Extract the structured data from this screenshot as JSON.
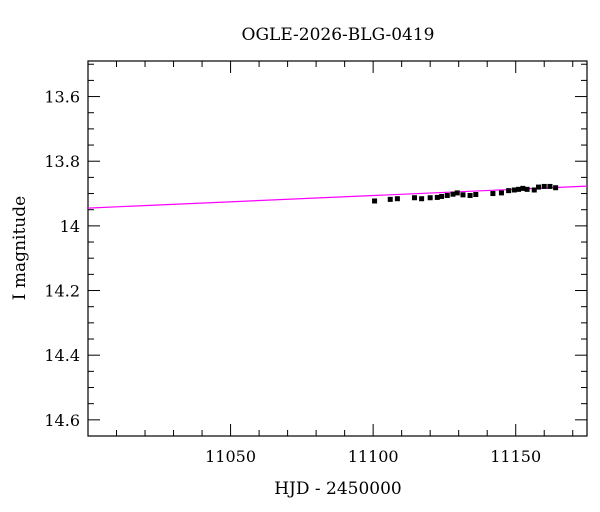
{
  "chart_data": {
    "type": "scatter",
    "title": "OGLE-2026-BLG-0419",
    "xlabel": "HJD - 2450000",
    "ylabel": "I magnitude",
    "xlim": [
      11000,
      11175
    ],
    "ylim": [
      14.65,
      13.49
    ],
    "y_inverted": true,
    "x_major_ticks": [
      11050,
      11100,
      11150
    ],
    "x_tick_labels": [
      "11050",
      "11100",
      "11150"
    ],
    "y_major_ticks": [
      13.6,
      13.8,
      14.0,
      14.2,
      14.4,
      14.6
    ],
    "y_tick_labels": [
      "13.6",
      "13.8",
      "14",
      "14.2",
      "14.4",
      "14.6"
    ],
    "grid": false,
    "series": [
      {
        "marker": "square",
        "color": "#000000",
        "x": [
          11100.5,
          11106.0,
          11108.5,
          11114.5,
          11117.0,
          11120.0,
          11122.5,
          11124.0,
          11126.0,
          11128.0,
          11129.5,
          11131.5,
          11134.0,
          11136.0,
          11142.0,
          11145.0,
          11147.5,
          11149.5,
          11151.0,
          11152.5,
          11154.0,
          11156.5,
          11158.0,
          11160.0,
          11162.0,
          11164.0
        ],
        "y": [
          13.923,
          13.918,
          13.916,
          13.913,
          13.916,
          13.913,
          13.912,
          13.909,
          13.906,
          13.902,
          13.898,
          13.904,
          13.906,
          13.903,
          13.9,
          13.898,
          13.891,
          13.889,
          13.887,
          13.884,
          13.887,
          13.889,
          13.88,
          13.878,
          13.878,
          13.882
        ]
      },
      {
        "type": "line",
        "role": "model",
        "color": "#ff00ff",
        "x": [
          11000,
          11175
        ],
        "y": [
          13.945,
          13.877
        ]
      }
    ]
  }
}
